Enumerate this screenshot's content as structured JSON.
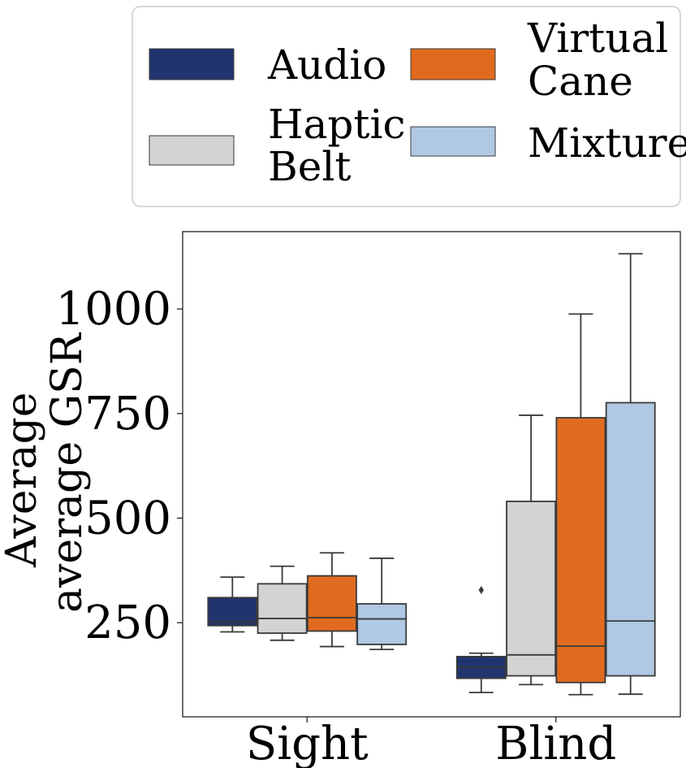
{
  "chart_data": {
    "type": "boxplot",
    "title": "",
    "xlabel": "",
    "ylabel_lines": [
      "Average",
      "average GSR"
    ],
    "categories": [
      "Sight",
      "Blind"
    ],
    "ylim": [
      25,
      1185
    ],
    "yticks": [
      250,
      500,
      750,
      1000
    ],
    "grid": false,
    "legend": {
      "placement": "top",
      "columns": 2,
      "entries": [
        {
          "series": "Audio",
          "label_lines": [
            "Audio"
          ]
        },
        {
          "series": "Virtual Cane",
          "label_lines": [
            "Virtual",
            "Cane"
          ]
        },
        {
          "series": "Haptic Belt",
          "label_lines": [
            "Haptic",
            "Belt"
          ]
        },
        {
          "series": "Mixture",
          "label_lines": [
            "Mixture"
          ]
        }
      ]
    },
    "series": [
      {
        "name": "Audio",
        "color": "#22346e",
        "boxes": [
          {
            "category": "Sight",
            "whislo": 228,
            "q1": 243,
            "med": 252,
            "q3": 310,
            "whishi": 359,
            "fliers": []
          },
          {
            "category": "Blind",
            "whislo": 83,
            "q1": 117,
            "med": 143,
            "q3": 169,
            "whishi": 177,
            "fliers": [
              328
            ]
          }
        ]
      },
      {
        "name": "Haptic Belt",
        "color": "#d3d3d3",
        "boxes": [
          {
            "category": "Sight",
            "whislo": 208,
            "q1": 225,
            "med": 260,
            "q3": 343,
            "whishi": 385,
            "fliers": []
          },
          {
            "category": "Blind",
            "whislo": 102,
            "q1": 123,
            "med": 173,
            "q3": 540,
            "whishi": 746,
            "fliers": []
          }
        ]
      },
      {
        "name": "Virtual Cane",
        "color": "#e06b20",
        "boxes": [
          {
            "category": "Sight",
            "whislo": 193,
            "q1": 230,
            "med": 262,
            "q3": 362,
            "whishi": 417,
            "fliers": []
          },
          {
            "category": "Blind",
            "whislo": 78,
            "q1": 107,
            "med": 194,
            "q3": 740,
            "whishi": 988,
            "fliers": []
          }
        ]
      },
      {
        "name": "Mixture",
        "color": "#b0c8e2",
        "boxes": [
          {
            "category": "Sight",
            "whislo": 186,
            "q1": 198,
            "med": 259,
            "q3": 295,
            "whishi": 404,
            "fliers": []
          },
          {
            "category": "Blind",
            "whislo": 79,
            "q1": 123,
            "med": 254,
            "q3": 776,
            "whishi": 1132,
            "fliers": []
          }
        ]
      }
    ]
  }
}
